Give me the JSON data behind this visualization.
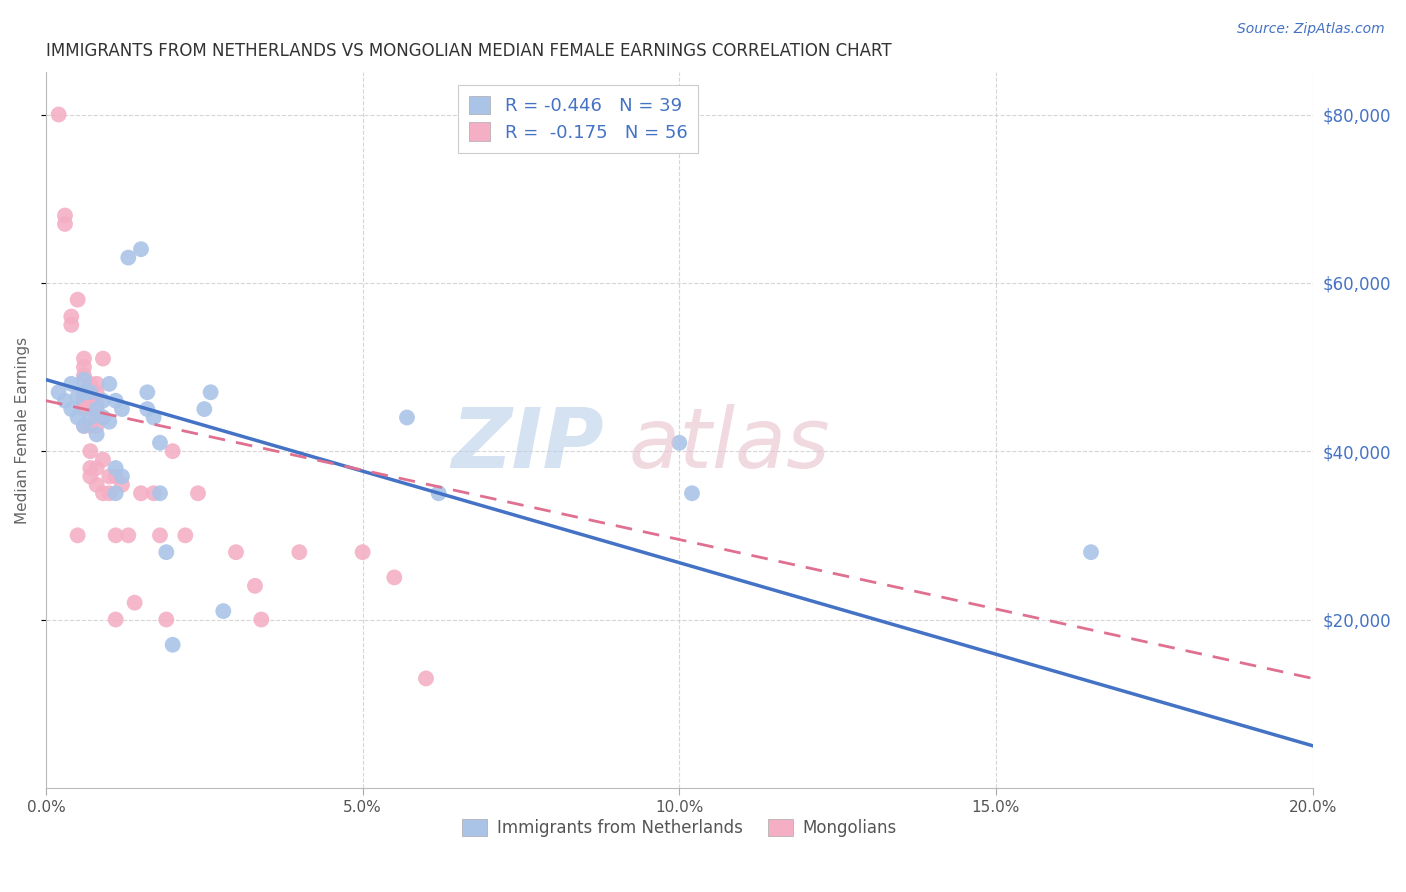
{
  "title": "IMMIGRANTS FROM NETHERLANDS VS MONGOLIAN MEDIAN FEMALE EARNINGS CORRELATION CHART",
  "source": "Source: ZipAtlas.com",
  "ylabel": "Median Female Earnings",
  "xlim": [
    0.0,
    0.2
  ],
  "ylim": [
    0,
    85000
  ],
  "yticks": [
    20000,
    40000,
    60000,
    80000
  ],
  "xticks": [
    0.0,
    0.05,
    0.1,
    0.15,
    0.2
  ],
  "blue_color": "#aac4e8",
  "pink_color": "#f4afc5",
  "blue_line_color": "#4472c4",
  "pink_line_color": "#e07090",
  "blue_line": [
    [
      0.0,
      48500
    ],
    [
      0.2,
      5000
    ]
  ],
  "pink_line": [
    [
      0.0,
      46000
    ],
    [
      0.2,
      13000
    ]
  ],
  "blue_scatter": [
    [
      0.002,
      47000
    ],
    [
      0.003,
      46000
    ],
    [
      0.004,
      45000
    ],
    [
      0.004,
      48000
    ],
    [
      0.005,
      46500
    ],
    [
      0.005,
      44000
    ],
    [
      0.006,
      47000
    ],
    [
      0.006,
      43000
    ],
    [
      0.006,
      48500
    ],
    [
      0.007,
      47000
    ],
    [
      0.007,
      44000
    ],
    [
      0.008,
      45000
    ],
    [
      0.008,
      42000
    ],
    [
      0.009,
      46000
    ],
    [
      0.009,
      44000
    ],
    [
      0.01,
      43500
    ],
    [
      0.01,
      48000
    ],
    [
      0.011,
      46000
    ],
    [
      0.011,
      38000
    ],
    [
      0.011,
      35000
    ],
    [
      0.012,
      45000
    ],
    [
      0.012,
      37000
    ],
    [
      0.013,
      63000
    ],
    [
      0.015,
      64000
    ],
    [
      0.016,
      47000
    ],
    [
      0.016,
      45000
    ],
    [
      0.017,
      44000
    ],
    [
      0.018,
      41000
    ],
    [
      0.018,
      35000
    ],
    [
      0.019,
      28000
    ],
    [
      0.02,
      17000
    ],
    [
      0.025,
      45000
    ],
    [
      0.026,
      47000
    ],
    [
      0.028,
      21000
    ],
    [
      0.057,
      44000
    ],
    [
      0.062,
      35000
    ],
    [
      0.1,
      41000
    ],
    [
      0.102,
      35000
    ],
    [
      0.165,
      28000
    ]
  ],
  "pink_scatter": [
    [
      0.002,
      80000
    ],
    [
      0.003,
      68000
    ],
    [
      0.003,
      67000
    ],
    [
      0.004,
      55000
    ],
    [
      0.004,
      56000
    ],
    [
      0.005,
      58000
    ],
    [
      0.006,
      51000
    ],
    [
      0.006,
      50000
    ],
    [
      0.006,
      49000
    ],
    [
      0.006,
      47000
    ],
    [
      0.006,
      46500
    ],
    [
      0.006,
      46000
    ],
    [
      0.006,
      45500
    ],
    [
      0.006,
      45000
    ],
    [
      0.006,
      43000
    ],
    [
      0.007,
      48000
    ],
    [
      0.007,
      47000
    ],
    [
      0.007,
      46000
    ],
    [
      0.007,
      43000
    ],
    [
      0.007,
      40000
    ],
    [
      0.007,
      38000
    ],
    [
      0.007,
      37000
    ],
    [
      0.008,
      48000
    ],
    [
      0.008,
      47000
    ],
    [
      0.008,
      45500
    ],
    [
      0.008,
      44000
    ],
    [
      0.008,
      43000
    ],
    [
      0.008,
      38000
    ],
    [
      0.008,
      36000
    ],
    [
      0.009,
      51000
    ],
    [
      0.009,
      44000
    ],
    [
      0.009,
      39000
    ],
    [
      0.009,
      35000
    ],
    [
      0.01,
      37000
    ],
    [
      0.01,
      35000
    ],
    [
      0.011,
      37000
    ],
    [
      0.011,
      30000
    ],
    [
      0.011,
      20000
    ],
    [
      0.012,
      36000
    ],
    [
      0.013,
      30000
    ],
    [
      0.014,
      22000
    ],
    [
      0.015,
      35000
    ],
    [
      0.017,
      35000
    ],
    [
      0.018,
      30000
    ],
    [
      0.019,
      20000
    ],
    [
      0.02,
      40000
    ],
    [
      0.022,
      30000
    ],
    [
      0.024,
      35000
    ],
    [
      0.03,
      28000
    ],
    [
      0.033,
      24000
    ],
    [
      0.034,
      20000
    ],
    [
      0.04,
      28000
    ],
    [
      0.05,
      28000
    ],
    [
      0.055,
      25000
    ],
    [
      0.06,
      13000
    ],
    [
      0.005,
      30000
    ]
  ],
  "background_color": "#ffffff",
  "grid_color": "#cccccc",
  "title_color": "#333333",
  "axis_label_color": "#666666",
  "right_tick_color": "#4472c4",
  "legend_text_color": "#4472c4",
  "legend_label_color": "#333333"
}
